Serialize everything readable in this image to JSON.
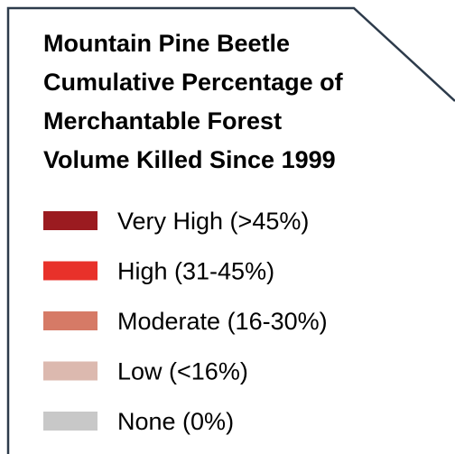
{
  "legend": {
    "title": [
      "Mountain Pine Beetle",
      "Cumulative Percentage of",
      "Merchantable Forest",
      "Volume Killed Since 1999"
    ],
    "items": [
      {
        "label": "Very High (>45%)",
        "color": "#9b1b20"
      },
      {
        "label": "High (31-45%)",
        "color": "#e8312a"
      },
      {
        "label": "Moderate (16-30%)",
        "color": "#d67a66"
      },
      {
        "label": "Low (<16%)",
        "color": "#dcb9af"
      },
      {
        "label": "None (0%)",
        "color": "#c8c8c8"
      }
    ]
  }
}
